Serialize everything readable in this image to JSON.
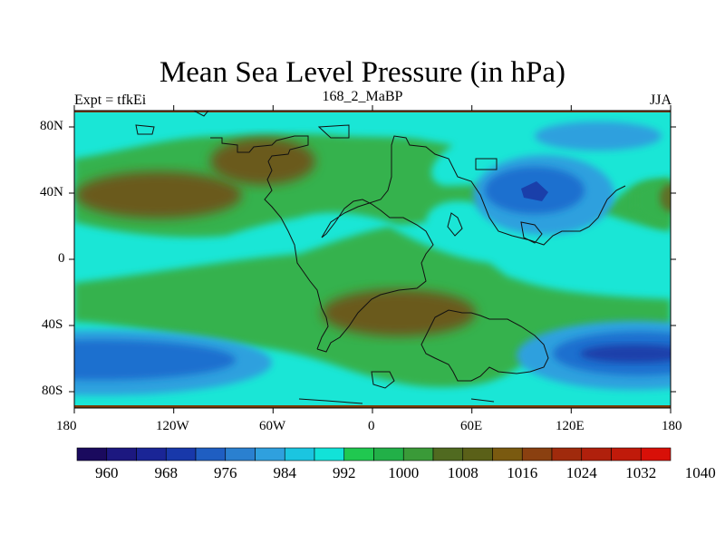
{
  "title": "Mean Sea Level Pressure (in hPa)",
  "left_subtitle": "Expt = tfkEi",
  "center_subtitle": "168_2_MaBP",
  "right_subtitle": "JJA",
  "x_ticks": [
    "180",
    "120W",
    "60W",
    "0",
    "60E",
    "120E",
    "180"
  ],
  "y_ticks": [
    "80N",
    "40N",
    "0",
    "40S",
    "80S"
  ],
  "colorbar": {
    "labels": [
      "960",
      "968",
      "976",
      "984",
      "992",
      "1000",
      "1008",
      "1016",
      "1024",
      "1032",
      "1040"
    ],
    "colors": [
      "#1a0a5e",
      "#1c1880",
      "#1a2596",
      "#1838aa",
      "#1f5ec2",
      "#2a80d0",
      "#2fa0de",
      "#1bc5e0",
      "#12e2d8",
      "#20c850",
      "#22b048",
      "#3a9a38",
      "#506a20",
      "#5a6018",
      "#7a5a10",
      "#8a4010",
      "#a02a0c",
      "#b0200c",
      "#c01a0a",
      "#d81008"
    ]
  },
  "map_colors": {
    "cyan": "#1ae6d6",
    "green": "#36b24e",
    "olive": "#5e6f25",
    "brown": "#6b5a1f",
    "blue_light": "#2ea0de",
    "blue_mid": "#1f6fcf",
    "blue_dark": "#1a3faa",
    "coast": "#111111",
    "frame_edge": "#7a3a08"
  }
}
